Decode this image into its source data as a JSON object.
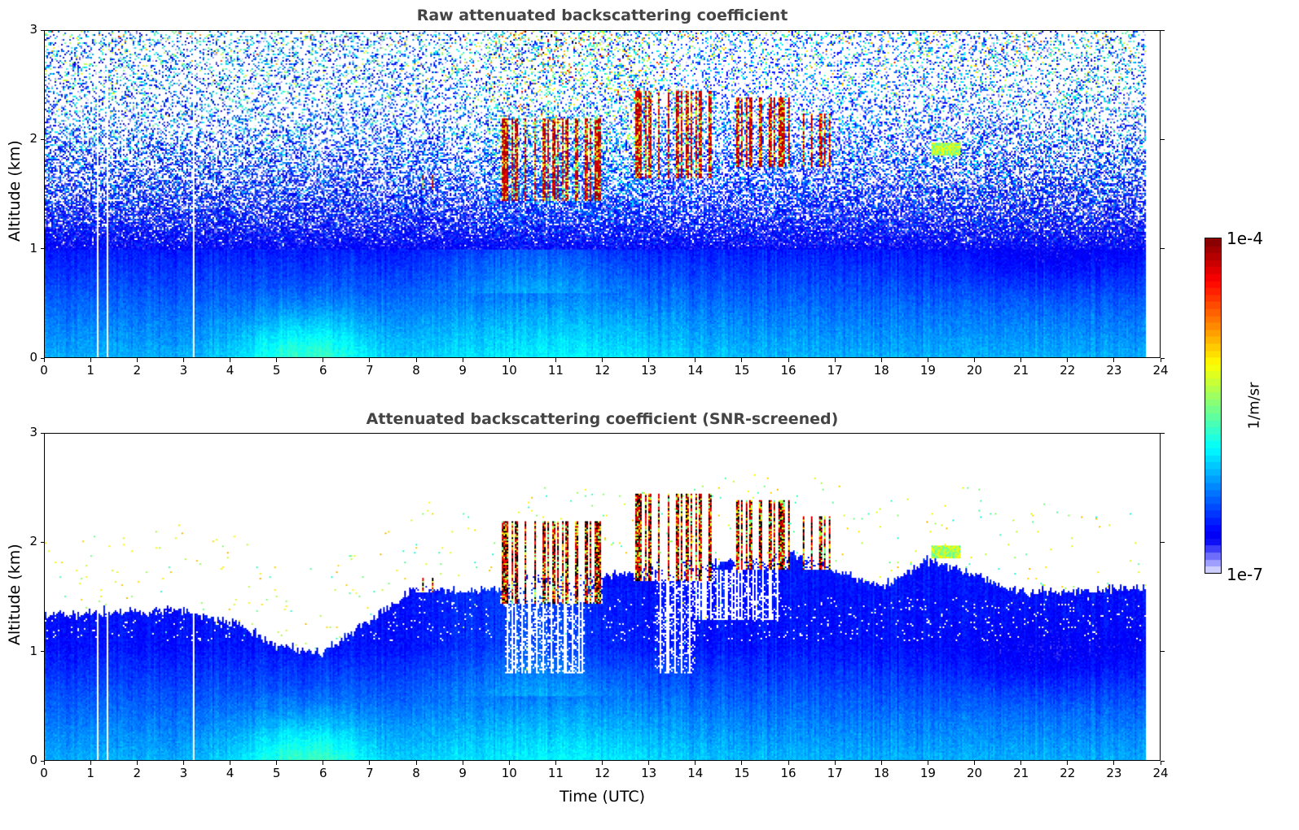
{
  "chart_data": [
    {
      "type": "heatmap",
      "title": "Raw attenuated backscattering coefficient",
      "xlabel": "",
      "ylabel": "Altitude (km)",
      "xlim": [
        0,
        24
      ],
      "ylim": [
        0,
        3
      ],
      "xticks": [
        "0",
        "1",
        "2",
        "3",
        "4",
        "5",
        "6",
        "7",
        "8",
        "9",
        "10",
        "11",
        "12",
        "13",
        "14",
        "15",
        "16",
        "17",
        "18",
        "19",
        "20",
        "21",
        "22",
        "23",
        "24"
      ],
      "yticks": [
        "0",
        "1",
        "2",
        "3"
      ],
      "screened": false
    },
    {
      "type": "heatmap",
      "title": "Attenuated backscattering coefficient (SNR-screened)",
      "xlabel": "Time (UTC)",
      "ylabel": "Altitude (km)",
      "xlim": [
        0,
        24
      ],
      "ylim": [
        0,
        3
      ],
      "xticks": [
        "0",
        "1",
        "2",
        "3",
        "4",
        "5",
        "6",
        "7",
        "8",
        "9",
        "10",
        "11",
        "12",
        "13",
        "14",
        "15",
        "16",
        "17",
        "18",
        "19",
        "20",
        "21",
        "22",
        "23",
        "24"
      ],
      "yticks": [
        "0",
        "1",
        "2",
        "3"
      ],
      "screened": true
    }
  ],
  "data_end_time_h": 23.7,
  "data_gaps_h": [
    1.13,
    1.32,
    3.2
  ],
  "signal_top_km": [
    [
      0,
      1.35
    ],
    [
      3,
      1.38
    ],
    [
      4.2,
      1.25
    ],
    [
      5,
      1.05
    ],
    [
      6,
      1.0
    ],
    [
      6.8,
      1.25
    ],
    [
      7.5,
      1.45
    ],
    [
      8,
      1.6
    ],
    [
      9,
      1.55
    ],
    [
      9.8,
      1.6
    ],
    [
      10.5,
      1.7
    ],
    [
      12,
      1.7
    ],
    [
      12.7,
      1.75
    ],
    [
      16.3,
      1.9
    ],
    [
      17,
      1.75
    ],
    [
      18,
      1.6
    ],
    [
      19,
      1.85
    ],
    [
      20,
      1.7
    ],
    [
      21,
      1.55
    ],
    [
      22,
      1.55
    ],
    [
      23.7,
      1.6
    ]
  ],
  "clouds": [
    {
      "t": [
        7.95,
        8.35
      ],
      "z": [
        1.55,
        1.68
      ],
      "strength": 0.9
    },
    {
      "t": [
        9.8,
        12.0
      ],
      "z": [
        1.45,
        2.2
      ],
      "strength": 1.0
    },
    {
      "t": [
        12.65,
        14.4
      ],
      "z": [
        1.65,
        2.45
      ],
      "strength": 1.0
    },
    {
      "t": [
        14.8,
        16.0
      ],
      "z": [
        1.75,
        2.4
      ],
      "strength": 1.0
    },
    {
      "t": [
        16.3,
        16.9
      ],
      "z": [
        1.75,
        2.25
      ],
      "strength": 0.8
    },
    {
      "t": [
        19.05,
        19.7
      ],
      "z": [
        1.86,
        1.98
      ],
      "strength": 0.6
    },
    {
      "t": [
        21.4,
        21.52
      ],
      "z": [
        1.76,
        1.9
      ],
      "strength": 0.9
    }
  ],
  "screened_gaps": [
    {
      "t": [
        9.9,
        11.6
      ],
      "z0": 0.8
    },
    {
      "t": [
        13.1,
        14.0
      ],
      "z0": 0.8
    },
    {
      "t": [
        14.0,
        15.8
      ],
      "z0": 1.3
    }
  ],
  "colorbar": {
    "min_label": "1e-7",
    "max_label": "1e-4",
    "label": "1/m/sr",
    "log_min": -7,
    "log_max": -4
  }
}
